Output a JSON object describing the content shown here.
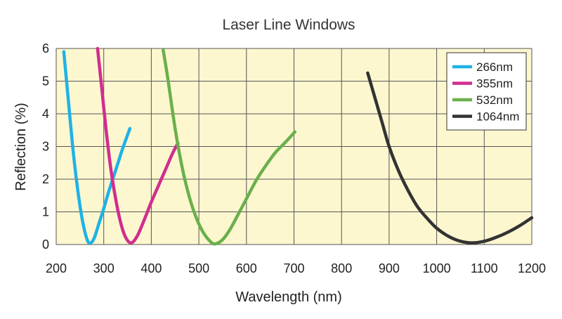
{
  "chart_data": {
    "type": "line",
    "title": "Laser Line Windows",
    "xlabel": "Wavelength (nm)",
    "ylabel": "Reflection (%)",
    "xlim": [
      200,
      1200
    ],
    "ylim": [
      0,
      6
    ],
    "xticks": [
      200,
      300,
      400,
      500,
      600,
      700,
      800,
      900,
      1000,
      1100,
      1200
    ],
    "yticks": [
      0,
      1,
      2,
      3,
      4,
      5,
      6
    ],
    "grid": true,
    "legend_position": "top-right",
    "plot_background": "#fdf7cf",
    "grid_color": "#555555",
    "series": [
      {
        "name": "266nm",
        "color": "#1fb2e6",
        "points": [
          [
            216,
            5.9
          ],
          [
            225,
            4.5
          ],
          [
            235,
            2.95
          ],
          [
            245,
            1.7
          ],
          [
            255,
            0.75
          ],
          [
            265,
            0.15
          ],
          [
            272,
            0.05
          ],
          [
            280,
            0.2
          ],
          [
            290,
            0.65
          ],
          [
            300,
            1.1
          ],
          [
            310,
            1.6
          ],
          [
            320,
            2.05
          ],
          [
            330,
            2.5
          ],
          [
            340,
            2.95
          ],
          [
            355,
            3.55
          ]
        ]
      },
      {
        "name": "355nm",
        "color": "#d02e8e",
        "points": [
          [
            287,
            6.0
          ],
          [
            295,
            4.9
          ],
          [
            305,
            3.5
          ],
          [
            315,
            2.3
          ],
          [
            325,
            1.4
          ],
          [
            335,
            0.7
          ],
          [
            345,
            0.25
          ],
          [
            357,
            0.05
          ],
          [
            370,
            0.25
          ],
          [
            385,
            0.75
          ],
          [
            400,
            1.3
          ],
          [
            415,
            1.8
          ],
          [
            430,
            2.3
          ],
          [
            445,
            2.8
          ],
          [
            456,
            3.1
          ]
        ]
      },
      {
        "name": "532nm",
        "color": "#6ab04c",
        "points": [
          [
            425,
            5.95
          ],
          [
            435,
            5.05
          ],
          [
            450,
            3.55
          ],
          [
            465,
            2.35
          ],
          [
            480,
            1.45
          ],
          [
            495,
            0.8
          ],
          [
            510,
            0.35
          ],
          [
            525,
            0.08
          ],
          [
            535,
            0.02
          ],
          [
            550,
            0.15
          ],
          [
            565,
            0.45
          ],
          [
            580,
            0.85
          ],
          [
            600,
            1.4
          ],
          [
            620,
            1.95
          ],
          [
            640,
            2.4
          ],
          [
            660,
            2.8
          ],
          [
            680,
            3.1
          ],
          [
            702,
            3.45
          ]
        ]
      },
      {
        "name": "1064nm",
        "color": "#333333",
        "points": [
          [
            855,
            5.25
          ],
          [
            870,
            4.5
          ],
          [
            885,
            3.75
          ],
          [
            900,
            3.0
          ],
          [
            920,
            2.25
          ],
          [
            940,
            1.65
          ],
          [
            960,
            1.15
          ],
          [
            980,
            0.8
          ],
          [
            1000,
            0.5
          ],
          [
            1025,
            0.25
          ],
          [
            1050,
            0.1
          ],
          [
            1075,
            0.05
          ],
          [
            1100,
            0.1
          ],
          [
            1125,
            0.22
          ],
          [
            1150,
            0.38
          ],
          [
            1175,
            0.58
          ],
          [
            1200,
            0.82
          ]
        ]
      }
    ]
  }
}
